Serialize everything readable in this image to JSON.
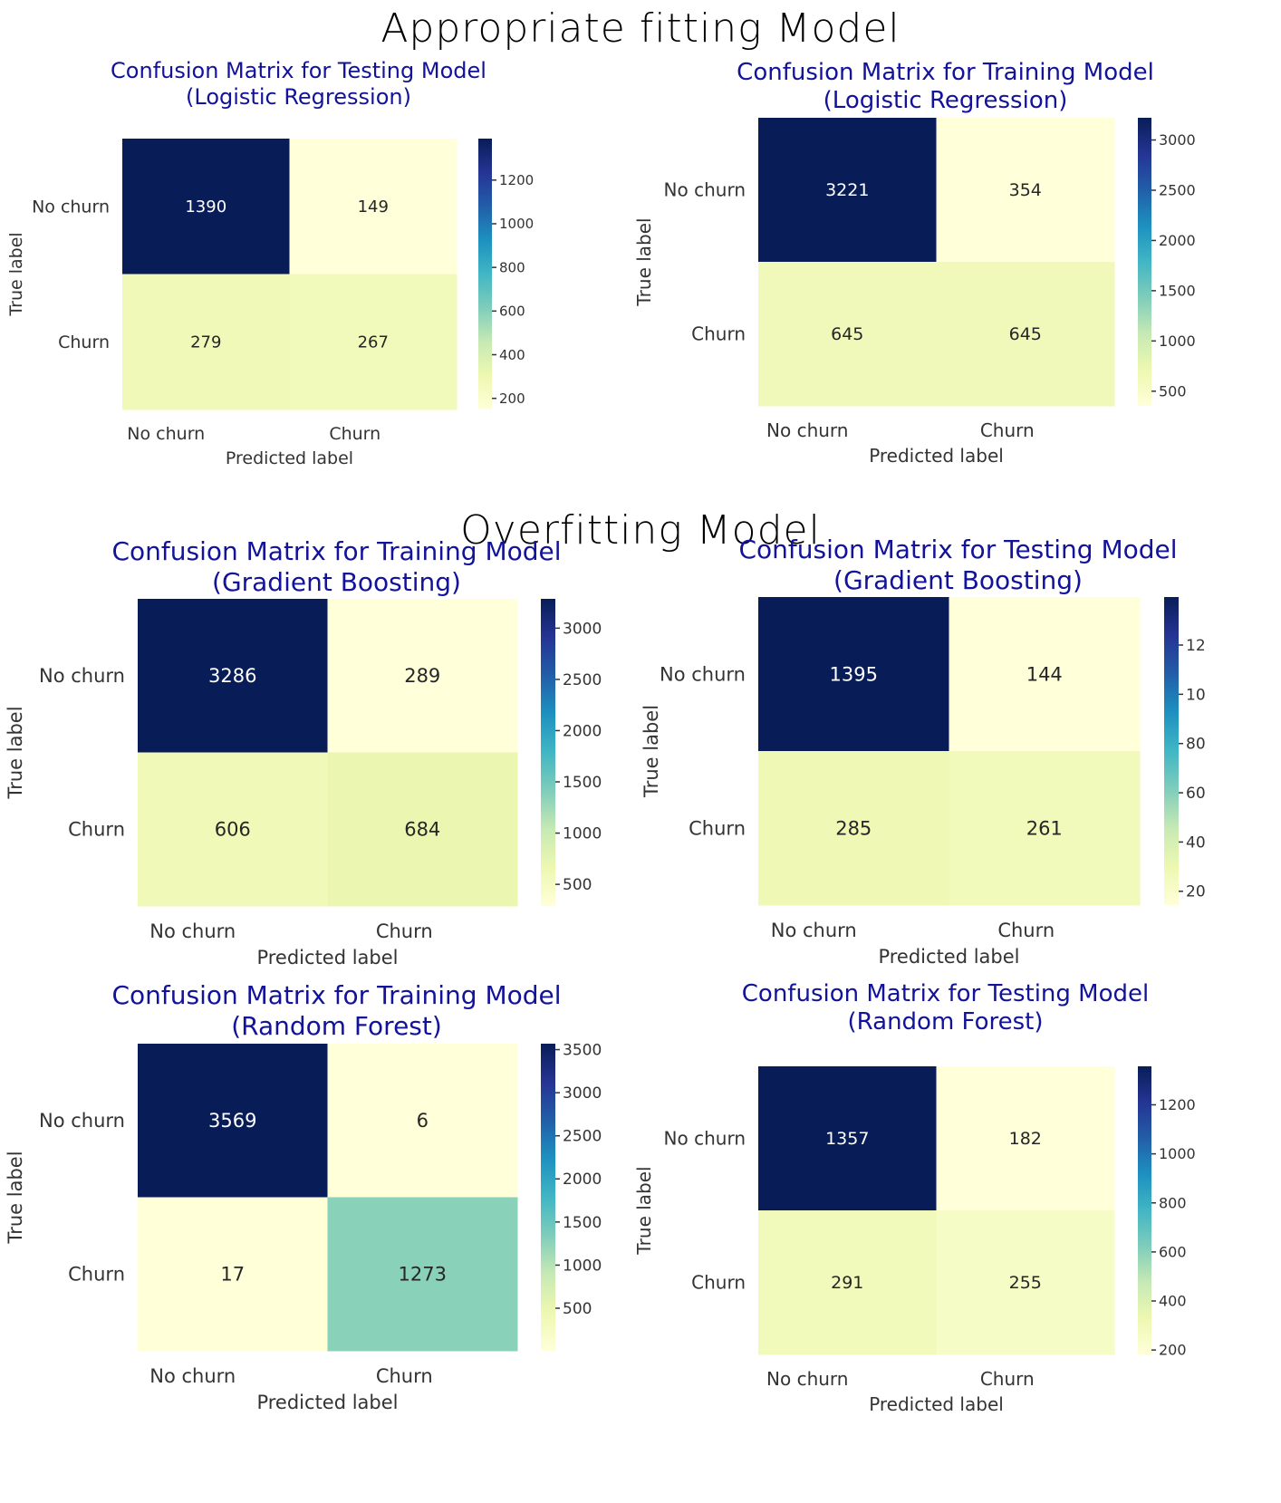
{
  "sections": [
    {
      "title": "Appropriate fitting Model"
    },
    {
      "title": "Overfitting Model"
    }
  ],
  "colormap": {
    "name": "YlGnBu",
    "stops": [
      "#ffffd9",
      "#edf8b1",
      "#c7e9b4",
      "#7fcdbb",
      "#41b6c4",
      "#1d91c0",
      "#225ea8",
      "#253494",
      "#081d58"
    ]
  },
  "text_colors": {
    "title": "#12129a",
    "tick": "#333333",
    "dark_cell_text": "#ffffff",
    "light_cell_text": "#262626"
  },
  "chart_data": [
    {
      "type": "heatmap",
      "title_line1": "Confusion Matrix for Testing Model",
      "title_line2": "(Logistic Regression)",
      "xlabel": "Predicted label",
      "ylabel": "True label",
      "x_categories": [
        "No churn",
        "Churn"
      ],
      "y_categories": [
        "No churn",
        "Churn"
      ],
      "values": [
        [
          1390,
          149
        ],
        [
          279,
          267
        ]
      ],
      "colorbar_ticks": [
        200,
        400,
        600,
        800,
        1000,
        1200
      ],
      "colorbar_range": [
        149,
        1390
      ]
    },
    {
      "type": "heatmap",
      "title_line1": "Confusion Matrix for Training Model",
      "title_line2": "(Logistic Regression)",
      "xlabel": "Predicted label",
      "ylabel": "True label",
      "x_categories": [
        "No churn",
        "Churn"
      ],
      "y_categories": [
        "No churn",
        "Churn"
      ],
      "values": [
        [
          3221,
          354
        ],
        [
          645,
          645
        ]
      ],
      "colorbar_ticks": [
        500,
        1000,
        1500,
        2000,
        2500,
        3000
      ],
      "colorbar_range": [
        354,
        3221
      ]
    },
    {
      "type": "heatmap",
      "title_line1": "Confusion Matrix for Training Model",
      "title_line2": "(Gradient Boosting)",
      "xlabel": "Predicted label",
      "ylabel": "True label",
      "x_categories": [
        "No churn",
        "Churn"
      ],
      "y_categories": [
        "No churn",
        "Churn"
      ],
      "values": [
        [
          3286,
          289
        ],
        [
          606,
          684
        ]
      ],
      "colorbar_ticks": [
        500,
        1000,
        1500,
        2000,
        2500,
        3000
      ],
      "colorbar_range": [
        289,
        3286
      ]
    },
    {
      "type": "heatmap",
      "title_line1": "Confusion Matrix for Testing Model",
      "title_line2": "(Gradient Boosting)",
      "xlabel": "Predicted label",
      "ylabel": "True label",
      "x_categories": [
        "No churn",
        "Churn"
      ],
      "y_categories": [
        "No churn",
        "Churn"
      ],
      "values": [
        [
          1395,
          144
        ],
        [
          285,
          261
        ]
      ],
      "colorbar_ticks": [
        200,
        400,
        600,
        800,
        1000,
        1200
      ],
      "colorbar_tick_labels_visible": [
        "20",
        "40",
        "60",
        "80",
        "10",
        "12"
      ],
      "colorbar_range": [
        144,
        1395
      ]
    },
    {
      "type": "heatmap",
      "title_line1": "Confusion Matrix for Training Model",
      "title_line2": "(Random Forest)",
      "xlabel": "Predicted label",
      "ylabel": "True label",
      "x_categories": [
        "No churn",
        "Churn"
      ],
      "y_categories": [
        "No churn",
        "Churn"
      ],
      "values": [
        [
          3569,
          6
        ],
        [
          17,
          1273
        ]
      ],
      "colorbar_ticks": [
        500,
        1000,
        1500,
        2000,
        2500,
        3000,
        3500
      ],
      "colorbar_range": [
        6,
        3569
      ]
    },
    {
      "type": "heatmap",
      "title_line1": "Confusion Matrix for Testing Model",
      "title_line2": "(Random Forest)",
      "xlabel": "Predicted label",
      "ylabel": "True label",
      "x_categories": [
        "No churn",
        "Churn"
      ],
      "y_categories": [
        "No churn",
        "Churn"
      ],
      "values": [
        [
          1357,
          182
        ],
        [
          291,
          255
        ]
      ],
      "colorbar_ticks": [
        200,
        400,
        600,
        800,
        1000,
        1200
      ],
      "colorbar_range": [
        182,
        1357
      ]
    }
  ]
}
